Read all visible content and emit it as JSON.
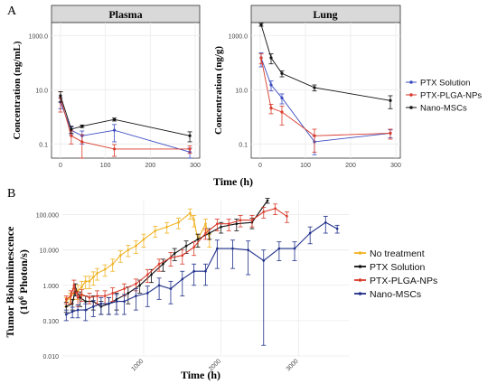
{
  "panel_a": {
    "letter": "A"
  },
  "panel_b": {
    "letter": "B"
  },
  "colors": {
    "blue": "#3b4cc0",
    "red": "#d93a2b",
    "black": "#111111",
    "yellow": "#f0b323",
    "navy": "#1f2f8a",
    "strip_bg": "#d9d9d9",
    "grid": "#ebebeb"
  },
  "chart_data": [
    {
      "type": "line",
      "title": "Plasma",
      "ylabel": "Concentration (ng/mL)",
      "xlabel": "Time (h)",
      "xlim": [
        -20,
        310
      ],
      "ylim": [
        0.03,
        3000
      ],
      "yscale": "log",
      "yticks": [
        0.1,
        10,
        1000
      ],
      "ytick_labels": [
        "0.1",
        "10.0",
        "1000.0"
      ],
      "xticks": [
        0,
        100,
        200,
        300
      ],
      "xtick_labels": [
        "0",
        "100",
        "200",
        "300"
      ],
      "series": [
        {
          "name": "PTX Solution",
          "color": "#3b4cc0",
          "x": [
            0,
            24,
            48,
            120,
            288
          ],
          "y": [
            3.5,
            0.32,
            0.2,
            0.32,
            0.05
          ],
          "err": [
            1.5,
            0.1,
            0.1,
            0.2,
            0.02
          ]
        },
        {
          "name": "PTX-PLGA-NPs",
          "color": "#d93a2b",
          "x": [
            0,
            24,
            48,
            120,
            288
          ],
          "y": [
            5.0,
            0.2,
            0.12,
            0.065,
            0.065
          ],
          "err": [
            3.5,
            0.1,
            0.1,
            0.03,
            0.02
          ]
        },
        {
          "name": "Nano-MSCs",
          "color": "#111111",
          "x": [
            0,
            24,
            48,
            120,
            288
          ],
          "y": [
            6.0,
            0.35,
            0.45,
            0.8,
            0.2
          ],
          "err": [
            2.5,
            0.1,
            0.05,
            0.1,
            0.08
          ]
        }
      ]
    },
    {
      "type": "line",
      "title": "Lung",
      "ylabel": "Concentration (ng/g)",
      "xlabel": "Time (h)",
      "xlim": [
        -20,
        310
      ],
      "ylim": [
        0.03,
        3000
      ],
      "yscale": "log",
      "yticks": [
        0.1,
        10,
        1000
      ],
      "ytick_labels": [
        "0.1",
        "10.0",
        "1000.0"
      ],
      "xticks": [
        0,
        100,
        200,
        300
      ],
      "xtick_labels": [
        "0",
        "100",
        "200",
        "300"
      ],
      "series": [
        {
          "name": "PTX Solution",
          "color": "#3b4cc0",
          "x": [
            2,
            24,
            48,
            120,
            288
          ],
          "y": [
            150,
            15,
            5,
            0.12,
            0.25
          ],
          "err": [
            80,
            6,
            2,
            0.08,
            0.08
          ]
        },
        {
          "name": "PTX-PLGA-NPs",
          "color": "#d93a2b",
          "x": [
            2,
            24,
            48,
            120,
            288
          ],
          "y": [
            150,
            2.1,
            1.5,
            0.2,
            0.25
          ],
          "err": [
            60,
            0.8,
            1.0,
            0.15,
            0.1
          ]
        },
        {
          "name": "Nano-MSCs",
          "color": "#111111",
          "x": [
            2,
            24,
            48,
            120,
            288
          ],
          "y": [
            2500,
            150,
            40,
            12,
            4
          ],
          "err": [
            300,
            60,
            10,
            3,
            2
          ]
        }
      ]
    },
    {
      "type": "line",
      "title": "",
      "ylabel_line1": "Tumor Bioluminescence",
      "ylabel_line2": "(10",
      "ylabel_sup": "6",
      "ylabel_line2_end": " Photon/s)",
      "xlabel": "Time (h)",
      "xlim": [
        -50,
        3650
      ],
      "ylim": [
        0.01,
        250
      ],
      "yscale": "log",
      "yticks": [
        0.01,
        0.1,
        1,
        10,
        100
      ],
      "ytick_labels": [
        "0.010",
        "0.100",
        "1.000",
        "10.000",
        "100.000"
      ],
      "xticks": [
        1000,
        2000,
        3000
      ],
      "xtick_labels": [
        "1000",
        "2000",
        "3000"
      ],
      "series": [
        {
          "name": "No treatment",
          "color": "#f0b323",
          "x": [
            0,
            50,
            100,
            150,
            200,
            250,
            300,
            350,
            400,
            500,
            600,
            700,
            800,
            900,
            1000,
            1150,
            1300,
            1450,
            1600,
            1650,
            1700,
            1800,
            1850
          ],
          "y": [
            0.35,
            0.45,
            0.6,
            0.7,
            0.9,
            1.3,
            1.3,
            1.7,
            2.2,
            2.8,
            4.0,
            7.0,
            10.0,
            13.0,
            20.0,
            35.0,
            45.0,
            60.0,
            110.0,
            70.0,
            20.0,
            55.0,
            20.0
          ],
          "err": [
            0.1,
            0.15,
            0.2,
            0.3,
            0.4,
            0.5,
            0.5,
            0.7,
            0.8,
            1.0,
            1.5,
            2.5,
            3.5,
            5.0,
            8.0,
            12.0,
            15.0,
            20.0,
            35.0,
            25.0,
            8.0,
            20.0,
            8.0
          ]
        },
        {
          "name": "PTX Solution",
          "color": "#111111",
          "x": [
            0,
            80,
            120,
            180,
            250,
            350,
            450,
            550,
            650,
            800,
            950,
            1100,
            1250,
            1400,
            1550,
            1700,
            1850,
            2000,
            2200,
            2400,
            2600
          ],
          "y": [
            0.25,
            0.3,
            0.8,
            0.45,
            0.35,
            0.35,
            0.25,
            0.3,
            0.4,
            0.6,
            1.0,
            2.0,
            4.0,
            8.0,
            13.0,
            20.0,
            30.0,
            45.0,
            55.0,
            60.0,
            250.0
          ],
          "err": [
            0.08,
            0.1,
            0.3,
            0.2,
            0.15,
            0.15,
            0.1,
            0.15,
            0.2,
            0.3,
            0.4,
            0.8,
            1.5,
            3.0,
            5.0,
            8.0,
            10.0,
            15.0,
            20.0,
            20.0,
            40.0
          ]
        },
        {
          "name": "PTX-PLGA-NPs",
          "color": "#d93a2b",
          "x": [
            0,
            60,
            100,
            150,
            200,
            300,
            400,
            500,
            600,
            750,
            900,
            1050,
            1200,
            1350,
            1500,
            1650,
            1800,
            1950,
            2100,
            2250,
            2400,
            2550,
            2700,
            2850
          ],
          "y": [
            0.4,
            0.5,
            1.0,
            0.45,
            0.55,
            0.45,
            0.5,
            0.5,
            0.6,
            0.8,
            1.1,
            2.0,
            4.0,
            6.0,
            7.0,
            12.0,
            30.0,
            55.0,
            55.0,
            70.0,
            70.0,
            120.0,
            150.0,
            90.0
          ],
          "err": [
            0.1,
            0.2,
            0.4,
            0.2,
            0.2,
            0.15,
            0.2,
            0.2,
            0.25,
            0.3,
            0.4,
            0.8,
            1.5,
            2.5,
            3.0,
            5.0,
            10.0,
            20.0,
            20.0,
            25.0,
            25.0,
            40.0,
            50.0,
            30.0
          ]
        },
        {
          "name": "Nano-MSCs",
          "color": "#1f2f8a",
          "x": [
            0,
            80,
            150,
            250,
            350,
            450,
            550,
            650,
            750,
            900,
            1050,
            1200,
            1350,
            1500,
            1650,
            1800,
            1950,
            2150,
            2350,
            2550,
            2750,
            2950,
            3150,
            3350,
            3500
          ],
          "y": [
            0.15,
            0.18,
            0.2,
            0.2,
            0.25,
            0.3,
            0.3,
            0.35,
            0.35,
            0.5,
            0.6,
            1.0,
            0.8,
            1.5,
            2.5,
            2.5,
            11.0,
            11.0,
            10.0,
            5.0,
            11.0,
            11.0,
            30.0,
            60.0,
            40.0
          ],
          "err": [
            0.05,
            0.06,
            0.08,
            0.1,
            0.12,
            0.15,
            0.15,
            0.2,
            0.2,
            0.3,
            0.35,
            0.6,
            0.5,
            1.0,
            1.5,
            1.5,
            8.0,
            8.0,
            8.0,
            4.98,
            6.0,
            6.0,
            15.0,
            30.0,
            10.0
          ]
        }
      ],
      "legend": [
        "No treatment",
        "PTX Solution",
        "PTX-PLGA-NPs",
        "Nano-MSCs"
      ]
    }
  ],
  "legend_a": [
    "PTX Solution",
    "PTX-PLGA-NPs",
    "Nano-MSCs"
  ]
}
